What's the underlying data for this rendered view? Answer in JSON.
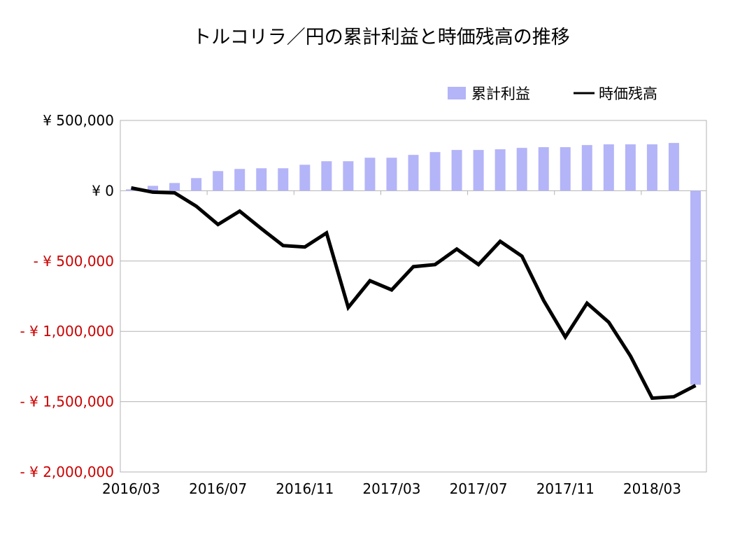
{
  "chart_data": {
    "type": "bar+line",
    "title": "トルコリラ／円の累計利益と時価残高の推移",
    "categories": [
      "2016/03",
      "2016/04",
      "2016/05",
      "2016/06",
      "2016/07",
      "2016/08",
      "2016/09",
      "2016/10",
      "2016/11",
      "2016/12",
      "2017/01",
      "2017/02",
      "2017/03",
      "2017/04",
      "2017/05",
      "2017/06",
      "2017/07",
      "2017/08",
      "2017/09",
      "2017/10",
      "2017/11",
      "2017/12",
      "2018/01",
      "2018/02",
      "2018/03",
      "2018/04",
      "2018/05"
    ],
    "x_tick_labels": [
      "2016/03",
      "2016/07",
      "2016/11",
      "2017/03",
      "2017/07",
      "2017/11",
      "2018/03"
    ],
    "y_tick_labels": [
      "¥ 500,000",
      "¥ 0",
      "- ¥ 500,000",
      "- ¥ 1,000,000",
      "- ¥ 1,500,000",
      "- ¥ 2,000,000"
    ],
    "y_ticks": [
      500000,
      0,
      -500000,
      -1000000,
      -1500000,
      -2000000
    ],
    "ylim": [
      -2000000,
      500000
    ],
    "grid": true,
    "legend_position": "top-right",
    "series": [
      {
        "name": "累計利益",
        "type": "bar",
        "color": "#b4b4f8",
        "values": [
          10000,
          35000,
          55000,
          90000,
          140000,
          155000,
          160000,
          160000,
          185000,
          210000,
          210000,
          235000,
          235000,
          255000,
          275000,
          290000,
          290000,
          295000,
          305000,
          310000,
          310000,
          325000,
          330000,
          330000,
          330000,
          340000,
          -1380000
        ]
      },
      {
        "name": "時価残高",
        "type": "line",
        "color": "#000000",
        "values": [
          20000,
          -10000,
          -15000,
          -110000,
          -240000,
          -145000,
          -270000,
          -390000,
          -400000,
          -300000,
          -830000,
          -640000,
          -705000,
          -540000,
          -525000,
          -415000,
          -525000,
          -360000,
          -465000,
          -780000,
          -1040000,
          -800000,
          -935000,
          -1175000,
          -1475000,
          -1465000,
          -1385000
        ]
      }
    ],
    "negative_label_color": "#cc0000"
  }
}
